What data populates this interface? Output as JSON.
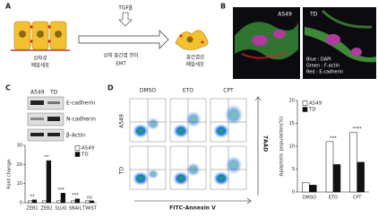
{
  "panels": {
    "a": {
      "label": "A",
      "stimulus": "TGFβ",
      "left_cell": [
        "상피성",
        "폐암세포"
      ],
      "process": [
        "상피 중간엽 전이",
        "EMT"
      ],
      "right_cell": [
        "중간엽성",
        "폐암세포"
      ]
    },
    "b": {
      "label": "B",
      "images": [
        "A549",
        "TD"
      ],
      "legend": [
        "Blue : DAPI",
        "Green : F-actin",
        "Red : E-cadherin"
      ]
    },
    "c": {
      "label": "C",
      "blot_lanes": [
        "A549",
        "TD"
      ],
      "blot_proteins": [
        "E-cadherin",
        "N-cadherin",
        "β-Actin"
      ]
    },
    "d": {
      "label": "D",
      "treatments": [
        "DMSO",
        "ETO",
        "CPT"
      ],
      "cell_lines": [
        "A549",
        "TD"
      ],
      "x_axis": "FITC-Annexin V",
      "y_axis": "7AAD"
    }
  },
  "chart_data": [
    {
      "type": "bar",
      "y_label": "Fold change",
      "categories": [
        "ZEB1",
        "ZEB2",
        "SLUG",
        "SNAIL",
        "TWIST"
      ],
      "series": [
        {
          "name": "A549",
          "color": "#ffffff",
          "values": [
            1,
            1,
            1,
            1,
            1
          ]
        },
        {
          "name": "TD",
          "color": "#111111",
          "values": [
            1.5,
            22,
            5,
            2,
            1
          ]
        }
      ],
      "annotations": [
        "**",
        "**",
        "***",
        "***",
        "ns"
      ],
      "ylim": [
        0,
        30
      ],
      "yticks": [
        0,
        10,
        20,
        30
      ],
      "legend": "upper right"
    },
    {
      "type": "bar",
      "y_label": "Apoptotic population(%)",
      "categories": [
        "DMSO",
        "ETO",
        "CPT"
      ],
      "series": [
        {
          "name": "A549",
          "color": "#ffffff",
          "values": [
            2,
            11,
            13
          ]
        },
        {
          "name": "TD",
          "color": "#111111",
          "values": [
            1.5,
            6,
            6.5
          ]
        }
      ],
      "annotations": [
        null,
        "***",
        "****"
      ],
      "ylim": [
        0,
        20
      ],
      "yticks": [
        0,
        5,
        10,
        15,
        20
      ],
      "legend": "upper left"
    }
  ]
}
